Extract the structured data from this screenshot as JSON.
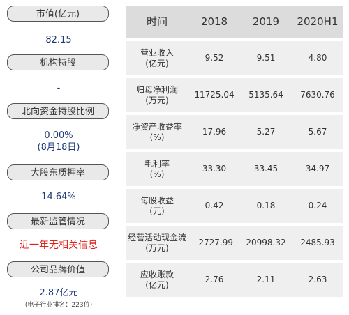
{
  "sidebar": {
    "items": [
      {
        "label": "市值(亿元)",
        "value": "82.15"
      },
      {
        "label": "机构持股",
        "value": "-"
      },
      {
        "label": "北向资金持股比例",
        "value": "0.00%",
        "value2": "(8月18日)"
      },
      {
        "label": "大股东质押率",
        "value": "14.64%"
      },
      {
        "label": "最新监管情况",
        "value": "近一年无相关信息"
      },
      {
        "label": "公司品牌价值",
        "value": "2.87亿元",
        "note": "(电子行业排名：223位)"
      }
    ]
  },
  "table": {
    "headers": [
      "时间",
      "2018",
      "2019",
      "2020H1"
    ],
    "rows": [
      {
        "metric": "营业收入",
        "unit": "(亿元)",
        "values": [
          "9.52",
          "9.51",
          "4.80"
        ]
      },
      {
        "metric": "归母净利润",
        "unit": "(万元)",
        "values": [
          "11725.04",
          "5135.64",
          "7630.76"
        ]
      },
      {
        "metric": "净资产收益率",
        "unit": "(%)",
        "values": [
          "17.96",
          "5.27",
          "5.67"
        ]
      },
      {
        "metric": "毛利率",
        "unit": "(%)",
        "values": [
          "33.30",
          "33.45",
          "34.97"
        ]
      },
      {
        "metric": "每股收益",
        "unit": "(元)",
        "values": [
          "0.42",
          "0.18",
          "0.24"
        ]
      },
      {
        "metric": "经营活动现金流",
        "unit": "(万元)",
        "values": [
          "-2727.99",
          "20998.32",
          "2485.93"
        ]
      },
      {
        "metric": "应收账款",
        "unit": "(亿元)",
        "values": [
          "2.76",
          "2.11",
          "2.63"
        ]
      }
    ]
  },
  "colors": {
    "value_blue": "#1f3a7a",
    "alert_red": "#e0201b",
    "header_bg": "#dcdcdc",
    "row_bg": "#efefef"
  }
}
